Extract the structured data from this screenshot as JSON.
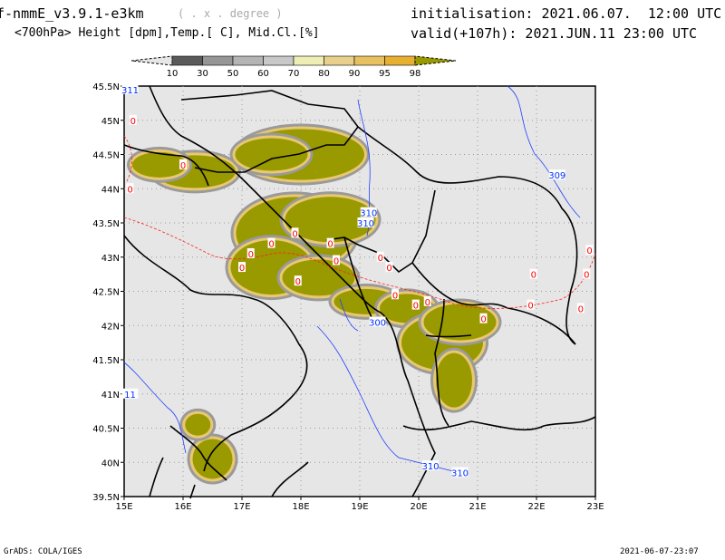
{
  "header": {
    "model": "f-nmmE_v3.9.1-e3km",
    "projection": "( . x . degree )",
    "subtitle": "<700hPa> Height [dpm],Temp.[ C], Mid.Cl.[%]",
    "initialisation": "initialisation: 2021.06.07.  12:00 UTC",
    "valid": "valid(+107h): 2021.JUN.11 23:00 UTC"
  },
  "legend": {
    "colors": [
      "#e6e6e6",
      "#5a5a5a",
      "#969696",
      "#b4b4b4",
      "#c8c8c8",
      "#eeeeb4",
      "#e8d08c",
      "#e8c060",
      "#e8b030",
      "#999900"
    ],
    "labels": [
      "10",
      "30",
      "50",
      "60",
      "70",
      "80",
      "90",
      "95",
      "98"
    ]
  },
  "map": {
    "lat_labels": [
      "45.5N",
      "45N",
      "44.5N",
      "44N",
      "43.5N",
      "43N",
      "42.5N",
      "42N",
      "41.5N",
      "41N",
      "40.5N",
      "40N",
      "39.5N"
    ],
    "lon_labels": [
      "15E",
      "16E",
      "17E",
      "18E",
      "19E",
      "20E",
      "21E",
      "22E",
      "23E"
    ],
    "height_labels": [
      {
        "text": "311",
        "lon": 15.1,
        "lat": 45.45
      },
      {
        "text": "310",
        "lon": 19.15,
        "lat": 43.65
      },
      {
        "text": "310",
        "lon": 19.1,
        "lat": 43.5
      },
      {
        "text": "309",
        "lon": 22.35,
        "lat": 44.2
      },
      {
        "text": "11",
        "lon": 15.1,
        "lat": 41.0
      },
      {
        "text": "300",
        "lon": 19.3,
        "lat": 42.05
      },
      {
        "text": "310",
        "lon": 20.2,
        "lat": 39.95
      },
      {
        "text": "310",
        "lon": 20.7,
        "lat": 39.85
      }
    ],
    "temp_labels": [
      {
        "text": "0",
        "lon": 15.15,
        "lat": 45.0
      },
      {
        "text": "0",
        "lon": 16.0,
        "lat": 44.35
      },
      {
        "text": "0",
        "lon": 15.1,
        "lat": 44.0
      },
      {
        "text": "0",
        "lon": 17.15,
        "lat": 43.05
      },
      {
        "text": "0",
        "lon": 17.0,
        "lat": 42.85
      },
      {
        "text": "0",
        "lon": 17.9,
        "lat": 43.35
      },
      {
        "text": "0",
        "lon": 18.5,
        "lat": 43.2
      },
      {
        "text": "0",
        "lon": 18.6,
        "lat": 42.95
      },
      {
        "text": "0",
        "lon": 17.95,
        "lat": 42.65
      },
      {
        "text": "0",
        "lon": 17.5,
        "lat": 43.2
      },
      {
        "text": "0",
        "lon": 19.5,
        "lat": 42.85
      },
      {
        "text": "0",
        "lon": 19.6,
        "lat": 42.45
      },
      {
        "text": "0",
        "lon": 19.95,
        "lat": 42.3
      },
      {
        "text": "0",
        "lon": 20.15,
        "lat": 42.35
      },
      {
        "text": "0",
        "lon": 21.1,
        "lat": 42.1
      },
      {
        "text": "0",
        "lon": 21.9,
        "lat": 42.3
      },
      {
        "text": "0",
        "lon": 21.95,
        "lat": 42.75
      },
      {
        "text": "0",
        "lon": 22.9,
        "lat": 43.1
      },
      {
        "text": "0",
        "lon": 22.85,
        "lat": 42.75
      },
      {
        "text": "0",
        "lon": 22.75,
        "lat": 42.25
      },
      {
        "text": "0",
        "lon": 19.35,
        "lat": 43.0
      }
    ]
  },
  "footer": {
    "left": "GrADS: COLA/IGES",
    "right": "2021-06-07-23:07"
  }
}
